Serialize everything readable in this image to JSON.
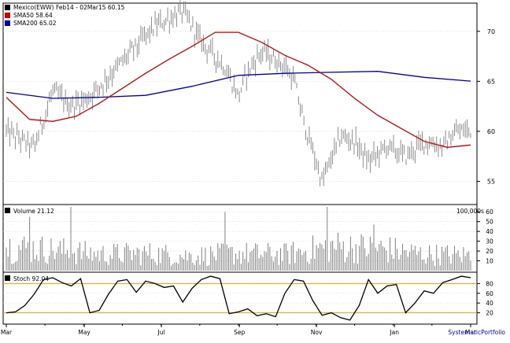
{
  "chart_data": [
    {
      "type": "bar",
      "subtype": "ohlc-price",
      "title": "Mexico(EWW) Feb14 - 02Mar15 60.15",
      "legend": [
        {
          "name": "Mexico(EWW) Feb14 - 02Mar15 60.15",
          "color": "#000000"
        },
        {
          "name": "SMA50 58.64",
          "color": "#cc0000"
        },
        {
          "name": "SMA200 65.02",
          "color": "#0000aa"
        }
      ],
      "legend_position": "top-left",
      "ylim": [
        53,
        72.5
      ],
      "yticks": [
        "55",
        "60",
        "65",
        "70"
      ],
      "grid": true,
      "price_anchors": {
        "x": [
          0,
          6,
          10,
          14,
          18,
          24,
          28,
          32,
          38,
          42,
          47,
          50,
          52,
          55,
          60,
          62,
          64,
          68,
          72,
          75,
          78,
          82,
          86,
          90,
          94,
          97,
          100
        ],
        "close": [
          60,
          58.4,
          64,
          62.5,
          63.5,
          66.5,
          68.5,
          70.5,
          72,
          69,
          66.5,
          63.5,
          66,
          68,
          66.5,
          65,
          61,
          55,
          59.5,
          59,
          57,
          58.5,
          57.5,
          59,
          58.5,
          60,
          60.15
        ]
      },
      "sma50": {
        "x": [
          0,
          5,
          10,
          15,
          20,
          25,
          30,
          35,
          40,
          45,
          50,
          55,
          60,
          65,
          70,
          75,
          80,
          85,
          90,
          95,
          100
        ],
        "y": [
          63.4,
          61.2,
          61.0,
          61.5,
          62.8,
          64.3,
          65.8,
          67.2,
          68.5,
          69.9,
          69.9,
          68.9,
          67.6,
          66.6,
          65.2,
          63.3,
          61.6,
          60.3,
          59.0,
          58.4,
          58.64
        ]
      },
      "sma200": {
        "x": [
          0,
          10,
          20,
          30,
          40,
          50,
          60,
          70,
          80,
          90,
          100
        ],
        "y": [
          63.9,
          63.3,
          63.4,
          63.6,
          64.5,
          65.6,
          65.8,
          65.9,
          66.0,
          65.4,
          65.02
        ]
      }
    },
    {
      "type": "bar",
      "title": "Volume 21.12",
      "unit_label": "100,000s",
      "ylim": [
        0,
        65
      ],
      "yticks": [
        "10",
        "20",
        "30",
        "40",
        "50",
        "60"
      ],
      "profile": {
        "x": [
          0,
          10,
          20,
          30,
          40,
          50,
          60,
          70,
          80,
          90,
          100
        ],
        "y": [
          28,
          24,
          19,
          20,
          17,
          20,
          19,
          28,
          26,
          19,
          18
        ]
      },
      "spikes": [
        {
          "x": 14,
          "y": 65
        },
        {
          "x": 5,
          "y": 55
        },
        {
          "x": 47,
          "y": 60
        },
        {
          "x": 69,
          "y": 66
        },
        {
          "x": 79,
          "y": 47
        }
      ]
    },
    {
      "type": "line",
      "title": "Stoch 92.04",
      "ylim": [
        0,
        100
      ],
      "yticks": [
        "20",
        "40",
        "60",
        "80"
      ],
      "levels": [
        20,
        80
      ],
      "x": [
        0,
        2,
        4,
        6,
        8,
        10,
        12,
        14,
        16,
        18,
        20,
        22,
        24,
        26,
        28,
        30,
        32,
        34,
        36,
        38,
        40,
        42,
        44,
        46,
        48,
        50,
        52,
        54,
        56,
        58,
        60,
        62,
        64,
        66,
        68,
        70,
        72,
        74,
        76,
        78,
        80,
        82,
        84,
        86,
        88,
        90,
        92,
        94,
        96,
        98,
        100
      ],
      "y": [
        20,
        22,
        35,
        58,
        88,
        92,
        82,
        75,
        90,
        20,
        25,
        58,
        85,
        88,
        62,
        85,
        80,
        72,
        75,
        42,
        70,
        88,
        95,
        90,
        18,
        22,
        28,
        14,
        18,
        12,
        60,
        88,
        85,
        45,
        15,
        20,
        10,
        5,
        35,
        88,
        60,
        75,
        78,
        20,
        40,
        65,
        60,
        82,
        88,
        95,
        92
      ]
    }
  ],
  "x_axis": {
    "labels": [
      "Mar",
      "May",
      "Jul",
      "Sep",
      "Nov",
      "Jan",
      "Mar"
    ],
    "positions": [
      0,
      16.8,
      33.4,
      50.2,
      66.8,
      83.6,
      100
    ]
  },
  "footer": "SystematicPortfolio",
  "colors": {
    "price": "#808080",
    "sma50": "#cc0000",
    "sma200": "#0000aa",
    "stoch": "#000000",
    "levels": "#f0a000",
    "grid": "#cccccc"
  }
}
